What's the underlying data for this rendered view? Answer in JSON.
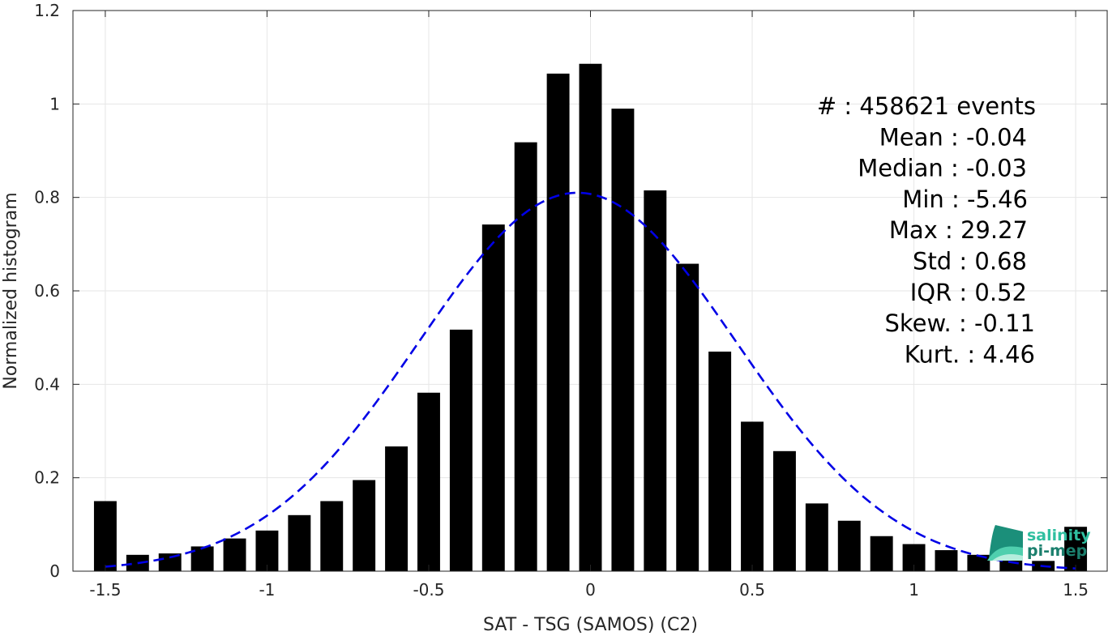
{
  "chart_data": {
    "type": "bar",
    "xlabel": "SAT - TSG (SAMOS) (C2)",
    "ylabel": "Normalized histogram",
    "xlim": [
      -1.6,
      1.6
    ],
    "ylim": [
      0,
      1.2
    ],
    "x_ticks": [
      -1.5,
      -1,
      -0.5,
      0,
      0.5,
      1,
      1.5
    ],
    "x_tick_labels": [
      "-1.5",
      "-1",
      "-0.5",
      "0",
      "0.5",
      "1",
      "1.5"
    ],
    "y_ticks": [
      0,
      0.2,
      0.4,
      0.6,
      0.8,
      1,
      1.2
    ],
    "y_tick_labels": [
      "0",
      "0.2",
      "0.4",
      "0.6",
      "0.8",
      "1",
      "1.2"
    ],
    "grid": true,
    "bar_color": "#000000",
    "bin_width": 0.1,
    "bar_width_fraction": 0.7,
    "bars": {
      "x": [
        -1.5,
        -1.4,
        -1.3,
        -1.2,
        -1.1,
        -1.0,
        -0.9,
        -0.8,
        -0.7,
        -0.6,
        -0.5,
        -0.4,
        -0.3,
        -0.2,
        -0.1,
        0.0,
        0.1,
        0.2,
        0.3,
        0.4,
        0.5,
        0.6,
        0.7,
        0.8,
        0.9,
        1.0,
        1.1,
        1.2,
        1.3,
        1.4,
        1.5
      ],
      "values": [
        0.15,
        0.035,
        0.038,
        0.053,
        0.07,
        0.087,
        0.12,
        0.15,
        0.195,
        0.267,
        0.382,
        0.517,
        0.742,
        0.918,
        1.065,
        1.086,
        0.99,
        0.815,
        0.658,
        0.47,
        0.32,
        0.257,
        0.145,
        0.108,
        0.075,
        0.058,
        0.045,
        0.035,
        0.03,
        0.022,
        0.095
      ]
    },
    "fit_curve": {
      "type": "gaussian",
      "style": "dashed",
      "color": "#0000e6",
      "mean": -0.04,
      "std": 0.49,
      "peak": 0.81,
      "x_range": [
        -1.5,
        1.5
      ]
    },
    "stats_lines": [
      "#  : 458621 events",
      "Mean : -0.04",
      "Median : -0.03",
      "Min : -5.46",
      "Max : 29.27",
      "Std : 0.68",
      "IQR : 0.52",
      "Skew. : -0.11",
      "Kurt. : 4.46"
    ]
  },
  "logo": {
    "line1": "salinity",
    "line2": "pi-mep",
    "color1": "#2fbfa0",
    "color2": "#1b7f6d"
  }
}
